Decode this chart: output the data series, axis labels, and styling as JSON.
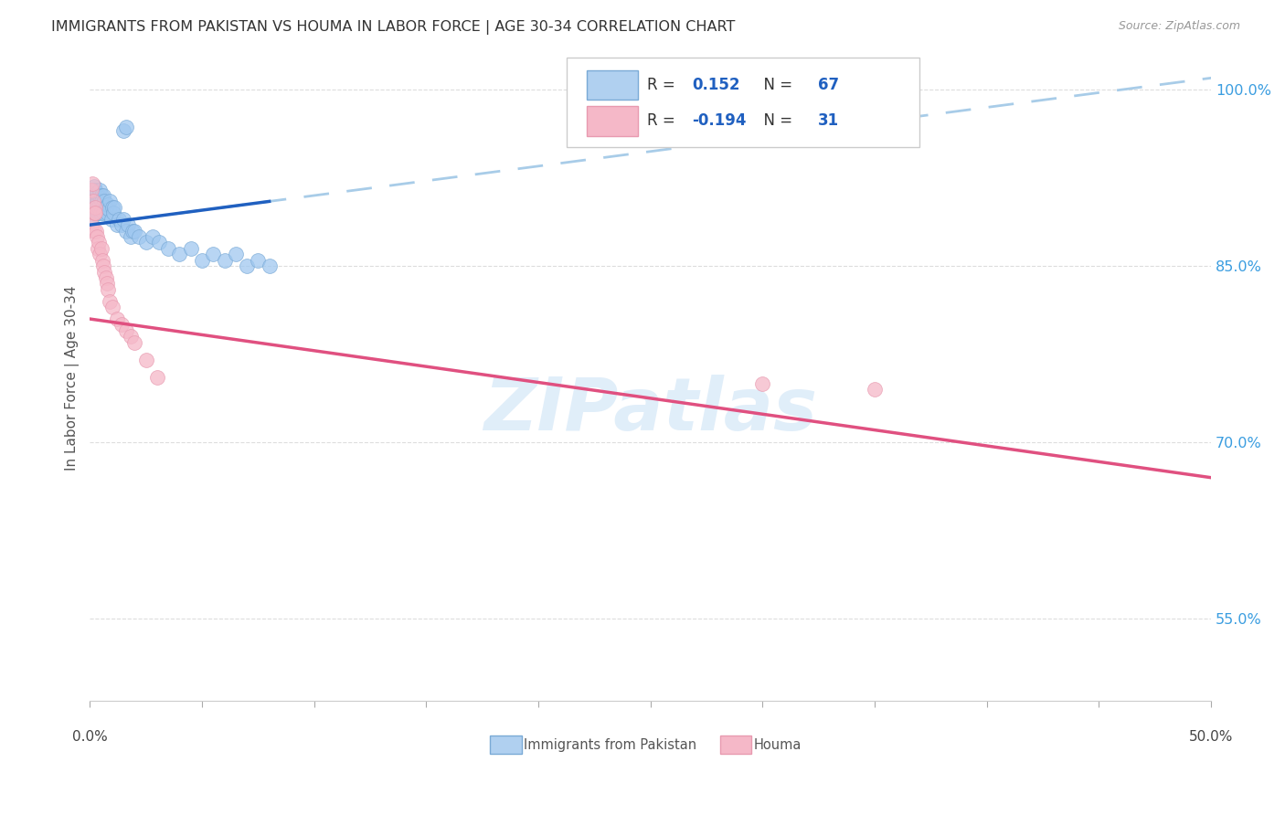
{
  "title": "IMMIGRANTS FROM PAKISTAN VS HOUMA IN LABOR FORCE | AGE 30-34 CORRELATION CHART",
  "source": "Source: ZipAtlas.com",
  "ylabel": "In Labor Force | Age 30-34",
  "xlim": [
    0.0,
    50.0
  ],
  "ylim": [
    48.0,
    103.0
  ],
  "yticks": [
    55.0,
    70.0,
    85.0,
    100.0
  ],
  "xtick_positions": [
    0,
    5,
    10,
    15,
    20,
    25,
    30,
    35,
    40,
    45,
    50
  ],
  "watermark": "ZIPatlas",
  "color_blue_scatter": "#a0c8f0",
  "color_pink_scatter": "#f5b8c8",
  "trendline_blue_solid": "#2060c0",
  "trendline_blue_dashed": "#a8cce8",
  "trendline_pink_solid": "#e05080",
  "pakistan_x": [
    0.05,
    0.08,
    0.1,
    0.12,
    0.12,
    0.14,
    0.15,
    0.17,
    0.18,
    0.2,
    0.22,
    0.22,
    0.24,
    0.25,
    0.26,
    0.28,
    0.3,
    0.3,
    0.32,
    0.34,
    0.35,
    0.38,
    0.4,
    0.42,
    0.44,
    0.46,
    0.48,
    0.5,
    0.52,
    0.55,
    0.58,
    0.6,
    0.65,
    0.7,
    0.75,
    0.8,
    0.85,
    0.9,
    0.95,
    1.0,
    1.05,
    1.1,
    1.2,
    1.3,
    1.4,
    1.5,
    1.6,
    1.7,
    1.8,
    1.9,
    2.0,
    2.2,
    2.5,
    2.8,
    3.1,
    3.5,
    4.0,
    4.5,
    5.0,
    5.5,
    6.0,
    6.5,
    7.0,
    7.5,
    8.0,
    1.5,
    1.6
  ],
  "pakistan_y": [
    89.0,
    90.5,
    91.0,
    90.0,
    91.5,
    90.8,
    91.2,
    90.5,
    91.8,
    90.0,
    89.5,
    91.0,
    90.2,
    91.5,
    90.8,
    89.8,
    91.0,
    90.0,
    91.2,
    90.5,
    89.5,
    91.0,
    90.0,
    91.5,
    90.2,
    89.5,
    90.8,
    91.0,
    90.5,
    90.0,
    89.5,
    91.0,
    90.5,
    90.0,
    89.5,
    90.2,
    89.8,
    90.5,
    89.0,
    90.0,
    89.5,
    90.0,
    88.5,
    89.0,
    88.5,
    89.0,
    88.0,
    88.5,
    87.5,
    88.0,
    88.0,
    87.5,
    87.0,
    87.5,
    87.0,
    86.5,
    86.0,
    86.5,
    85.5,
    86.0,
    85.5,
    86.0,
    85.0,
    85.5,
    85.0,
    96.5,
    96.8
  ],
  "houma_x": [
    0.05,
    0.08,
    0.1,
    0.15,
    0.18,
    0.2,
    0.22,
    0.25,
    0.28,
    0.3,
    0.35,
    0.4,
    0.45,
    0.5,
    0.55,
    0.6,
    0.65,
    0.7,
    0.75,
    0.8,
    0.9,
    1.0,
    1.2,
    1.4,
    1.6,
    1.8,
    2.0,
    2.5,
    3.0,
    30.0,
    35.0
  ],
  "houma_y": [
    91.5,
    88.5,
    92.0,
    90.5,
    89.5,
    88.0,
    90.0,
    89.5,
    88.0,
    87.5,
    86.5,
    87.0,
    86.0,
    86.5,
    85.5,
    85.0,
    84.5,
    84.0,
    83.5,
    83.0,
    82.0,
    81.5,
    80.5,
    80.0,
    79.5,
    79.0,
    78.5,
    77.0,
    75.5,
    75.0,
    74.5
  ],
  "blue_trend_x0": 0.0,
  "blue_trend_y0": 88.5,
  "blue_trend_x1": 50.0,
  "blue_trend_y1": 101.0,
  "blue_solid_xmax": 8.0,
  "pink_trend_x0": 0.0,
  "pink_trend_y0": 80.5,
  "pink_trend_x1": 50.0,
  "pink_trend_y1": 67.0
}
